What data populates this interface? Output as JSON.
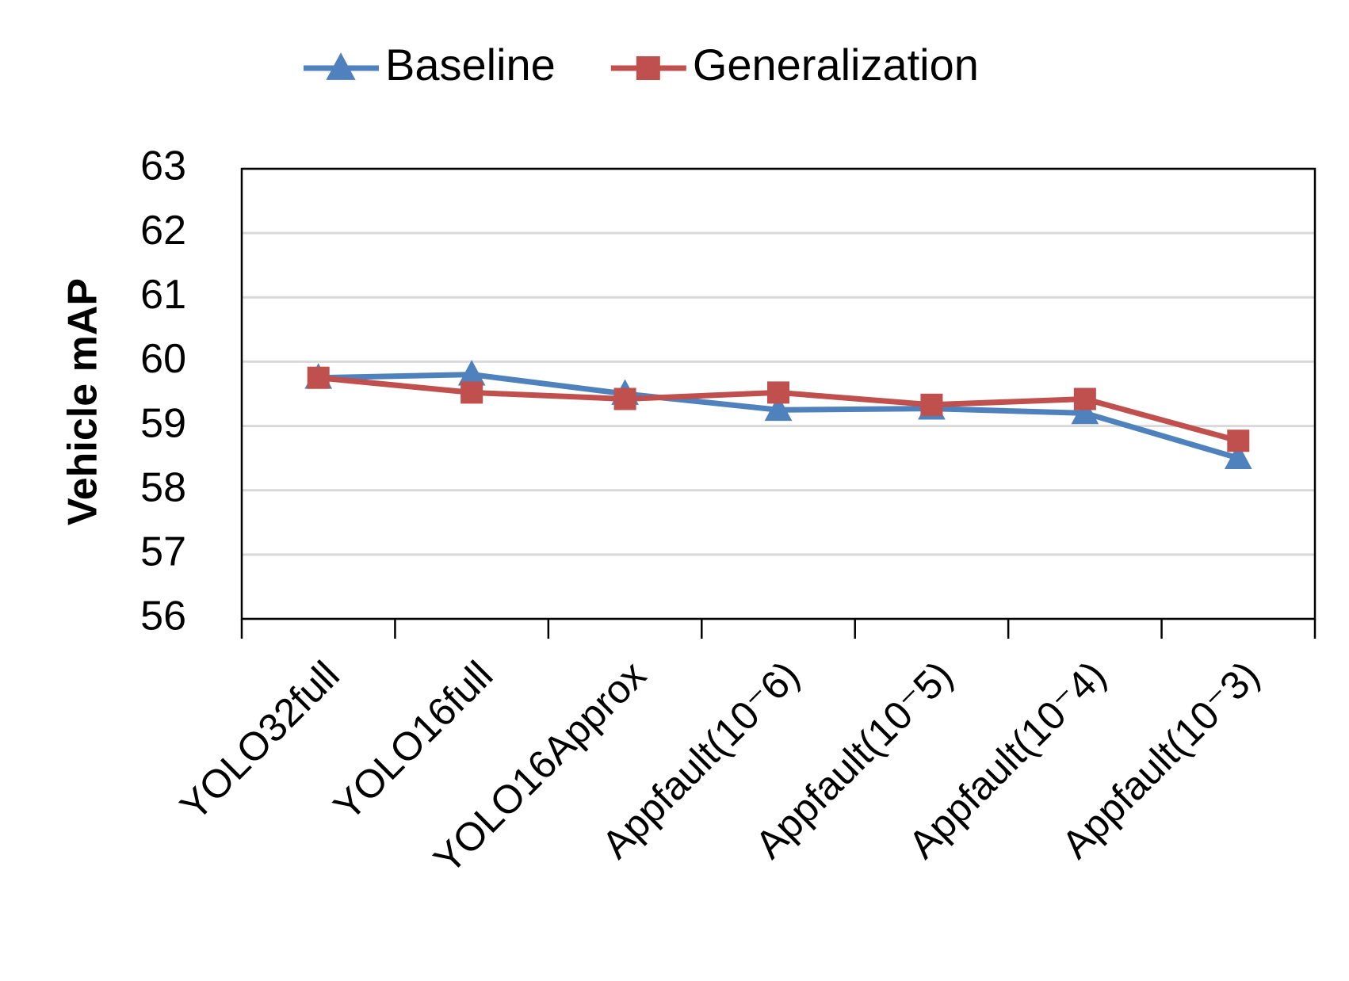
{
  "chart_data": {
    "type": "line",
    "y_label": "Vehicle mAP",
    "categories": [
      "YOLO32full",
      "YOLO16full",
      "YOLO16Approx",
      "Appfault(10⁻6)",
      "Appfault(10⁻5)",
      "Appfault(10⁻4)",
      "Appfault(10⁻3)"
    ],
    "series": [
      {
        "name": "Baseline",
        "color": "#4f81bd",
        "marker": "triangle",
        "values": [
          59.75,
          59.8,
          59.5,
          59.25,
          59.27,
          59.2,
          58.5
        ]
      },
      {
        "name": "Generalization",
        "color": "#c0504d",
        "marker": "square",
        "values": [
          59.75,
          59.52,
          59.42,
          59.52,
          59.33,
          59.42,
          58.77
        ]
      }
    ],
    "ylim": [
      56,
      63
    ],
    "yticks": [
      56,
      57,
      58,
      59,
      60,
      61,
      62,
      63
    ],
    "grid": true,
    "legend": "top"
  }
}
